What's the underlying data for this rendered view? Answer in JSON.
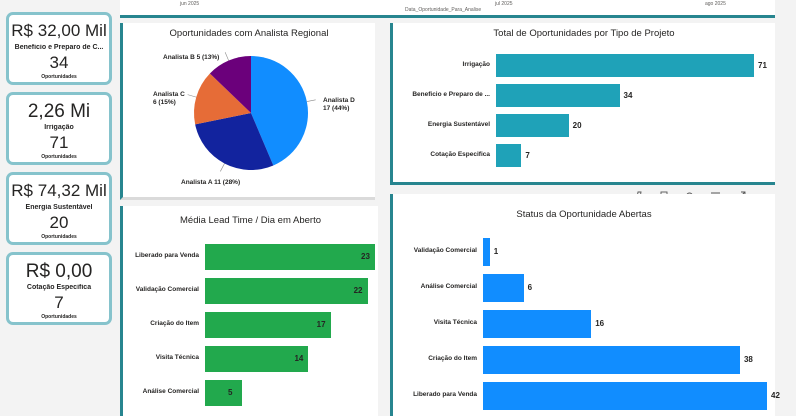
{
  "timeline": {
    "ticks": [
      "jun 2025",
      "jul 2025",
      "ago 2025"
    ],
    "axis_label": "Data_Oportunidade_Para_Analise"
  },
  "kpis": [
    {
      "value": "R$ 32,00 Mil",
      "label": "Beneficio e Preparo de C...",
      "count": "34",
      "sub": "Oportunidades"
    },
    {
      "value": "2,26 Mi",
      "label": "Irrigação",
      "count": "71",
      "sub": "Oportunidades"
    },
    {
      "value": "R$ 74,32 Mil",
      "label": "Energia Sustentável",
      "count": "20",
      "sub": "Oportunidades"
    },
    {
      "value": "R$ 0,00",
      "label": "Cotação Especifica",
      "count": "7",
      "sub": "Oportunidades"
    }
  ],
  "toolbar_icons": [
    "pin-icon",
    "copy-icon",
    "bell-icon",
    "filter-icon",
    "expand-icon",
    "more-icon"
  ],
  "chart_data": [
    {
      "type": "pie",
      "title": "Oportunidades com Analista Regional",
      "slices": [
        {
          "name": "Analista D",
          "value": 17,
          "pct": "44%",
          "color": "#118dff",
          "label": "Analista D\n17 (44%)"
        },
        {
          "name": "Analista A",
          "value": 11,
          "pct": "28%",
          "color": "#12239e",
          "label": "Analista A 11 (28%)"
        },
        {
          "name": "Analista C",
          "value": 6,
          "pct": "15%",
          "color": "#e66c37",
          "label": "Analista C\n6 (15%)"
        },
        {
          "name": "Analista B",
          "value": 5,
          "pct": "13%",
          "color": "#6b007b",
          "label": "Analista B 5 (13%)"
        }
      ]
    },
    {
      "type": "bar",
      "title": "Total de Oportunidades por Tipo de Projeto",
      "categories": [
        "Irrigação",
        "Beneficio e Preparo de ...",
        "Energia Sustentável",
        "Cotação Especifica"
      ],
      "values": [
        71,
        34,
        20,
        7
      ],
      "color": "#1fa2b8"
    },
    {
      "type": "bar",
      "title": "Média Lead Time / Dia em Aberto",
      "categories": [
        "Liberado para Venda",
        "Validação Comercial",
        "Criação do Item",
        "Visita Técnica",
        "Análise Comercial"
      ],
      "values": [
        23,
        22,
        17,
        14,
        5
      ],
      "color": "#22a94d"
    },
    {
      "type": "bar",
      "title": "Status da Oportunidade Abertas",
      "categories": [
        "Validação Comercial",
        "Análise Comercial",
        "Visita Técnica",
        "Criação do Item",
        "Liberado para Venda"
      ],
      "values": [
        1,
        6,
        16,
        38,
        42
      ],
      "color": "#118dff"
    }
  ]
}
